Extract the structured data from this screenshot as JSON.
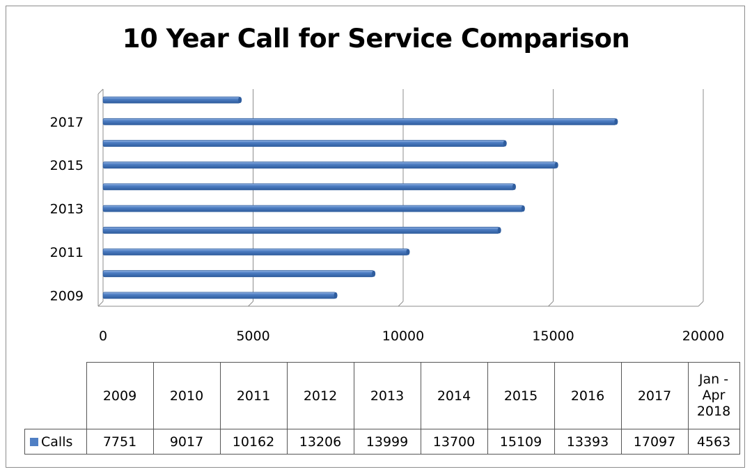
{
  "chart_data": {
    "type": "bar",
    "orientation": "horizontal",
    "title": "10 Year Call for Service Comparison",
    "categories": [
      "2009",
      "2010",
      "2011",
      "2012",
      "2013",
      "2014",
      "2015",
      "2016",
      "2017",
      "Jan - Apr 2018"
    ],
    "category_axis_labels": [
      "2009",
      "",
      "2011",
      "",
      "2013",
      "",
      "2015",
      "",
      "2017",
      ""
    ],
    "series": [
      {
        "name": "Calls",
        "values": [
          7751,
          9017,
          10162,
          13206,
          13999,
          13700,
          15109,
          13393,
          17097,
          4563
        ],
        "color": "#4f7fc4"
      }
    ],
    "xlim": [
      0,
      20000
    ],
    "xticks": [
      "0",
      "5000",
      "10000",
      "15000",
      "20000"
    ],
    "grid": true,
    "style": "3d"
  },
  "data_table": {
    "headers": [
      "2009",
      "2010",
      "2011",
      "2012",
      "2013",
      "2014",
      "2015",
      "2016",
      "2017",
      "Jan - Apr 2018"
    ],
    "header_lines": [
      [
        "2009"
      ],
      [
        "2010"
      ],
      [
        "2011"
      ],
      [
        "2012"
      ],
      [
        "2013"
      ],
      [
        "2014"
      ],
      [
        "2015"
      ],
      [
        "2016"
      ],
      [
        "2017"
      ],
      [
        "Jan -",
        "Apr",
        "2018"
      ]
    ],
    "row_label": "Calls",
    "values": [
      "7751",
      "9017",
      "10162",
      "13206",
      "13999",
      "13700",
      "15109",
      "13393",
      "17097",
      "4563"
    ]
  },
  "colors": {
    "bar": "#4f7fc4",
    "bar_dark": "#2f5d9e",
    "gridline": "#8c8c8c",
    "border": "#8c8c8c"
  }
}
